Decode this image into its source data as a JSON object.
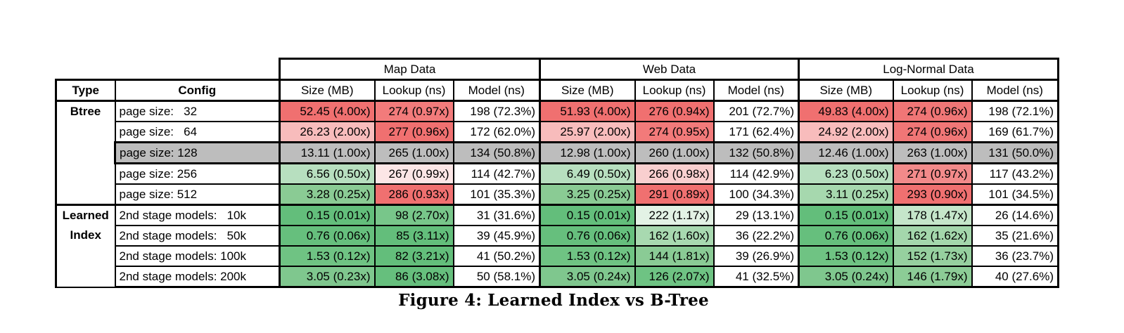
{
  "groups": [
    "Map Data",
    "Web Data",
    "Log-Normal Data"
  ],
  "headers": {
    "type": "Type",
    "config": "Config",
    "size": "Size (MB)",
    "lookup": "Lookup (ns)",
    "model": "Model (ns)"
  },
  "sections": {
    "btree": "Btree",
    "learned_line1": "Learned",
    "learned_line2": "Index"
  },
  "rows": [
    {
      "config": "page size:   32",
      "cells": [
        {
          "text": "52.45  (4.00x)",
          "bg": "#f07070"
        },
        {
          "text": "274  (0.97x)",
          "bg": "#f27b7b"
        },
        {
          "text": "198  (72.3%)",
          "bg": "#ffffff"
        },
        {
          "text": "51.93  (4.00x)",
          "bg": "#f07070"
        },
        {
          "text": "276  (0.94x)",
          "bg": "#f07070"
        },
        {
          "text": "201  (72.7%)",
          "bg": "#ffffff"
        },
        {
          "text": "49.83  (4.00x)",
          "bg": "#f07070"
        },
        {
          "text": "274  (0.96x)",
          "bg": "#f07676"
        },
        {
          "text": "198  (72.1%)",
          "bg": "#ffffff"
        }
      ]
    },
    {
      "config": "page size:   64",
      "cells": [
        {
          "text": "26.23  (2.00x)",
          "bg": "#f8bcbc"
        },
        {
          "text": "277  (0.96x)",
          "bg": "#f07070"
        },
        {
          "text": "172  (62.0%)",
          "bg": "#ffffff"
        },
        {
          "text": "25.97  (2.00x)",
          "bg": "#f8bcbc"
        },
        {
          "text": "274  (0.95x)",
          "bg": "#f27a7a"
        },
        {
          "text": "171  (62.4%)",
          "bg": "#ffffff"
        },
        {
          "text": "24.92  (2.00x)",
          "bg": "#f8bcbc"
        },
        {
          "text": "274  (0.96x)",
          "bg": "#f07676"
        },
        {
          "text": "169  (61.7%)",
          "bg": "#ffffff"
        }
      ]
    },
    {
      "config": "page size: 128",
      "cells": [
        {
          "text": "13.11  (1.00x)",
          "bg": ""
        },
        {
          "text": "265  (1.00x)",
          "bg": ""
        },
        {
          "text": "134  (50.8%)",
          "bg": ""
        },
        {
          "text": "12.98  (1.00x)",
          "bg": ""
        },
        {
          "text": "260  (1.00x)",
          "bg": ""
        },
        {
          "text": "132  (50.8%)",
          "bg": ""
        },
        {
          "text": "12.46  (1.00x)",
          "bg": ""
        },
        {
          "text": "263  (1.00x)",
          "bg": ""
        },
        {
          "text": "131  (50.0%)",
          "bg": ""
        }
      ]
    },
    {
      "config": "page size: 256",
      "cells": [
        {
          "text": "6.56  (0.50x)",
          "bg": "#b7dfbf"
        },
        {
          "text": "267  (0.99x)",
          "bg": "#fce6e6"
        },
        {
          "text": "114  (42.7%)",
          "bg": "#ffffff"
        },
        {
          "text": "6.49  (0.50x)",
          "bg": "#b7dfbf"
        },
        {
          "text": "266  (0.98x)",
          "bg": "#f9cfcf"
        },
        {
          "text": "114  (42.9%)",
          "bg": "#ffffff"
        },
        {
          "text": "6.23  (0.50x)",
          "bg": "#b7dfbf"
        },
        {
          "text": "271  (0.97x)",
          "bg": "#f28a8a"
        },
        {
          "text": "117  (43.2%)",
          "bg": "#ffffff"
        }
      ]
    },
    {
      "config": "page size: 512",
      "cells": [
        {
          "text": "3.28  (0.25x)",
          "bg": "#8acb94"
        },
        {
          "text": "286  (0.93x)",
          "bg": "#f07070"
        },
        {
          "text": "101  (35.3%)",
          "bg": "#ffffff"
        },
        {
          "text": "3.25  (0.25x)",
          "bg": "#8acb94"
        },
        {
          "text": "291  (0.89x)",
          "bg": "#f07070"
        },
        {
          "text": "100  (34.3%)",
          "bg": "#ffffff"
        },
        {
          "text": "3.11  (0.25x)",
          "bg": "#a6d8ae"
        },
        {
          "text": "293  (0.90x)",
          "bg": "#f07070"
        },
        {
          "text": "101  (34.5%)",
          "bg": "#ffffff"
        }
      ]
    },
    {
      "config": "2nd stage models:   10k",
      "cells": [
        {
          "text": "0.15  (0.01x)",
          "bg": "#63be7b"
        },
        {
          "text": "98  (2.70x)",
          "bg": "#78c68a"
        },
        {
          "text": "31  (31.6%)",
          "bg": "#ffffff"
        },
        {
          "text": "0.15  (0.01x)",
          "bg": "#63be7b"
        },
        {
          "text": "222  (1.17x)",
          "bg": "#e3f2e5"
        },
        {
          "text": "29  (13.1%)",
          "bg": "#ffffff"
        },
        {
          "text": "0.15  (0.01x)",
          "bg": "#63be7b"
        },
        {
          "text": "178  (1.47x)",
          "bg": "#c5e6ca"
        },
        {
          "text": "26  (14.6%)",
          "bg": "#ffffff"
        }
      ]
    },
    {
      "config": "2nd stage models:   50k",
      "cells": [
        {
          "text": "0.76  (0.06x)",
          "bg": "#66bf7d"
        },
        {
          "text": "85  (3.11x)",
          "bg": "#63be7b"
        },
        {
          "text": "39  (45.9%)",
          "bg": "#ffffff"
        },
        {
          "text": "0.76  (0.06x)",
          "bg": "#66bf7d"
        },
        {
          "text": "162  (1.60x)",
          "bg": "#a8d9b0"
        },
        {
          "text": "36  (22.2%)",
          "bg": "#ffffff"
        },
        {
          "text": "0.76  (0.06x)",
          "bg": "#66bf7d"
        },
        {
          "text": "162  (1.62x)",
          "bg": "#a4d7ac"
        },
        {
          "text": "35  (21.6%)",
          "bg": "#ffffff"
        }
      ]
    },
    {
      "config": "2nd stage models: 100k",
      "cells": [
        {
          "text": "1.53  (0.12x)",
          "bg": "#6fc383"
        },
        {
          "text": "82  (3.21x)",
          "bg": "#63be7b"
        },
        {
          "text": "41  (50.2%)",
          "bg": "#ffffff"
        },
        {
          "text": "1.53  (0.12x)",
          "bg": "#6fc383"
        },
        {
          "text": "144  (1.81x)",
          "bg": "#8acb95"
        },
        {
          "text": "39  (26.9%)",
          "bg": "#ffffff"
        },
        {
          "text": "1.53  (0.12x)",
          "bg": "#6fc383"
        },
        {
          "text": "152  (1.73x)",
          "bg": "#96d09f"
        },
        {
          "text": "36  (23.7%)",
          "bg": "#ffffff"
        }
      ]
    },
    {
      "config": "2nd stage models: 200k",
      "cells": [
        {
          "text": "3.05  (0.23x)",
          "bg": "#7fc78e"
        },
        {
          "text": "86  (3.08x)",
          "bg": "#66bf7d"
        },
        {
          "text": "50  (58.1%)",
          "bg": "#ffffff"
        },
        {
          "text": "3.05  (0.24x)",
          "bg": "#7fc78e"
        },
        {
          "text": "126  (2.07x)",
          "bg": "#6ec383"
        },
        {
          "text": "41  (32.5%)",
          "bg": "#ffffff"
        },
        {
          "text": "3.05  (0.24x)",
          "bg": "#7fc78e"
        },
        {
          "text": "146  (1.79x)",
          "bg": "#8ccc96"
        },
        {
          "text": "40  (27.6%)",
          "bg": "#ffffff"
        }
      ]
    }
  ],
  "caption": "Figure 4: Learned Index vs B-Tree"
}
